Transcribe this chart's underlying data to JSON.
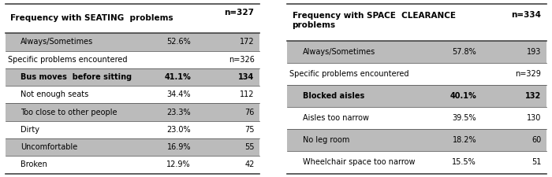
{
  "left_table": {
    "header_label": "Frequency with SEATING  problems",
    "header_n": "n=327",
    "rows": [
      {
        "label": "Always/Sometimes",
        "pct": "52.6%",
        "n": "172",
        "bold": false,
        "shaded": true,
        "indent": true
      },
      {
        "label": "Specific problems encountered",
        "pct": "",
        "n": "n=326",
        "bold": false,
        "shaded": false,
        "indent": false
      },
      {
        "label": "Bus moves  before sitting",
        "pct": "41.1%",
        "n": "134",
        "bold": true,
        "shaded": true,
        "indent": true
      },
      {
        "label": "Not enough seats",
        "pct": "34.4%",
        "n": "112",
        "bold": false,
        "shaded": false,
        "indent": true
      },
      {
        "label": "Too close to other people",
        "pct": "23.3%",
        "n": "76",
        "bold": false,
        "shaded": true,
        "indent": true
      },
      {
        "label": "Dirty",
        "pct": "23.0%",
        "n": "75",
        "bold": false,
        "shaded": false,
        "indent": true
      },
      {
        "label": "Uncomfortable",
        "pct": "16.9%",
        "n": "55",
        "bold": false,
        "shaded": true,
        "indent": true
      },
      {
        "label": "Broken",
        "pct": "12.9%",
        "n": "42",
        "bold": false,
        "shaded": false,
        "indent": true
      }
    ]
  },
  "right_table": {
    "header_label": "Frequency with SPACE  CLEARANCE\nproblems",
    "header_n": "n=334",
    "rows": [
      {
        "label": "Always/Sometimes",
        "pct": "57.8%",
        "n": "193",
        "bold": false,
        "shaded": true,
        "indent": true
      },
      {
        "label": "Specific problems encountered",
        "pct": "",
        "n": "n=329",
        "bold": false,
        "shaded": false,
        "indent": false
      },
      {
        "label": "Blocked aisles",
        "pct": "40.1%",
        "n": "132",
        "bold": true,
        "shaded": true,
        "indent": true
      },
      {
        "label": "Aisles too narrow",
        "pct": "39.5%",
        "n": "130",
        "bold": false,
        "shaded": false,
        "indent": true
      },
      {
        "label": "No leg room",
        "pct": "18.2%",
        "n": "60",
        "bold": false,
        "shaded": true,
        "indent": true
      },
      {
        "label": "Wheelchair space too narrow",
        "pct": "15.5%",
        "n": "51",
        "bold": false,
        "shaded": false,
        "indent": true
      }
    ]
  },
  "shaded_color": "#bbbbbb",
  "bg_color": "#ffffff",
  "border_color": "#444444",
  "font_size": 7.0,
  "header_font_size": 7.5,
  "small_font_size": 6.8
}
